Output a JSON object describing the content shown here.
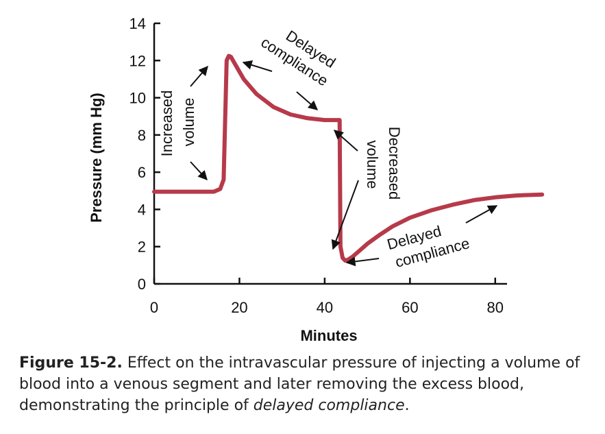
{
  "chart_data": {
    "type": "line",
    "xlabel": "Minutes",
    "ylabel": "Pressure (mm Hg)",
    "xlim": [
      0,
      90
    ],
    "ylim": [
      0,
      14
    ],
    "xticks": [
      0,
      20,
      40,
      60,
      80
    ],
    "yticks": [
      0,
      2,
      4,
      6,
      8,
      10,
      12,
      14
    ],
    "grid": false,
    "line_color": "#b63a4a",
    "series": [
      {
        "x": [
          0,
          14,
          15.5,
          16.3,
          17,
          17.5,
          18,
          19,
          21,
          24,
          28,
          32,
          36,
          40,
          43.5,
          43.7,
          44.2,
          44.8,
          45.5,
          46.5,
          48,
          50,
          53,
          56,
          60,
          65,
          70,
          75,
          80,
          85,
          91
        ],
        "y": [
          4.95,
          4.95,
          5.1,
          5.6,
          12.0,
          12.25,
          12.2,
          11.8,
          11.0,
          10.2,
          9.5,
          9.1,
          8.9,
          8.8,
          8.8,
          2.0,
          1.4,
          1.25,
          1.3,
          1.45,
          1.75,
          2.15,
          2.65,
          3.1,
          3.55,
          3.95,
          4.25,
          4.5,
          4.65,
          4.75,
          4.8
        ]
      }
    ],
    "annotations": {
      "increased_volume_line1": "Increased",
      "increased_volume_line2": "volume",
      "delayed_top_line1": "Delayed",
      "delayed_top_line2": "compliance",
      "decreased_volume_line1": "Decreased",
      "decreased_volume_line2": "volume",
      "delayed_bottom_line1": "Delayed",
      "delayed_bottom_line2": "compliance"
    }
  },
  "caption": {
    "figure_label": "Figure 15-2.",
    "text_part1": " Effect on the intravascular pressure of injecting a vol­ume of blood into a venous segment and later removing the excess blood, demonstrating the principle of ",
    "text_emphasis": "delayed compliance",
    "text_end": "."
  }
}
